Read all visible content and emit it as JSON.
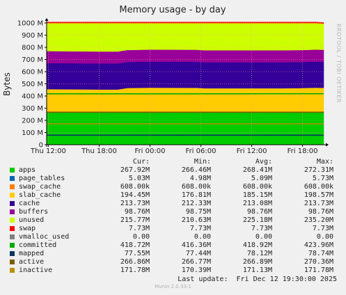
{
  "chart_data": {
    "type": "area",
    "title": "Memory usage - by day",
    "ylabel": "Bytes",
    "ylim": [
      0,
      1000000000
    ],
    "y_ticks": [
      "0",
      "100 M",
      "200 M",
      "300 M",
      "400 M",
      "500 M",
      "600 M",
      "700 M",
      "800 M",
      "900 M",
      "1000 M"
    ],
    "x_ticks": [
      "Thu 12:00",
      "Thu 18:00",
      "Fri 00:00",
      "Fri 06:00",
      "Fri 12:00",
      "Fri 18:00"
    ],
    "x_hours": [
      0,
      6,
      12,
      18,
      24,
      30
    ],
    "x_range_hours": [
      -0.2,
      32.5
    ],
    "grid": true,
    "watermark": "RRDTOOL / TOBI OETIKER",
    "stack_hours": [
      -0.2,
      6,
      8.2,
      9.3,
      12,
      17.5,
      18.5,
      24,
      26,
      27.5,
      30,
      31.5,
      32.5
    ],
    "stacked_series": [
      {
        "name": "apps",
        "color": "#00cc00",
        "values": [
          267.9,
          267.9,
          267.9,
          267.9,
          267.9,
          267.9,
          267.9,
          267.9,
          267.9,
          267.9,
          267.9,
          267.9,
          267.9
        ]
      },
      {
        "name": "page_tables",
        "color": "#0066b3",
        "values": [
          5.03,
          5.03,
          5.03,
          5.03,
          5.03,
          5.03,
          5.03,
          5.03,
          5.03,
          5.03,
          5.03,
          5.03,
          5.03
        ]
      },
      {
        "name": "swap_cache",
        "color": "#ff8000",
        "values": [
          0.608,
          0.608,
          0.608,
          0.608,
          0.608,
          0.608,
          0.608,
          0.608,
          0.608,
          0.608,
          0.608,
          0.608,
          0.608
        ]
      },
      {
        "name": "slab_cache",
        "color": "#ffcc00",
        "values": [
          183,
          180,
          180,
          192,
          195,
          194,
          190,
          190,
          190,
          190,
          192,
          195,
          194
        ]
      },
      {
        "name": "cache",
        "color": "#330099",
        "values": [
          213.7,
          213.7,
          213.7,
          213.7,
          213.7,
          213.7,
          213.7,
          213.7,
          213.7,
          213.7,
          213.7,
          213.7,
          213.7
        ]
      },
      {
        "name": "buffers",
        "color": "#990099",
        "values": [
          98.76,
          98.76,
          98.76,
          98.76,
          98.76,
          98.76,
          98.76,
          98.76,
          98.76,
          98.76,
          98.76,
          98.76,
          98.76
        ]
      },
      {
        "name": "unused",
        "color": "#ccff00",
        "values": [
          230.6,
          233.6,
          233.6,
          221.6,
          218.6,
          219.6,
          223.6,
          223.6,
          223.6,
          223.6,
          221.6,
          218.6,
          215.77
        ]
      },
      {
        "name": "swap",
        "color": "#ff0000",
        "values": [
          7.73,
          7.73,
          7.73,
          7.73,
          7.73,
          7.73,
          7.73,
          7.73,
          7.73,
          7.73,
          7.73,
          7.73,
          7.73
        ]
      }
    ],
    "line_series": [
      {
        "name": "committed",
        "color": "#00aa00",
        "values": [
          418.5,
          418.5,
          418.5,
          418.5,
          418.5,
          418.5,
          418.5,
          418.5,
          418.7,
          418.7,
          418.7,
          418.7,
          418.7
        ]
      },
      {
        "name": "mapped",
        "color": "#0a3560",
        "values": [
          78,
          78,
          78,
          78,
          78,
          78,
          78,
          78,
          78,
          78,
          78,
          78,
          77.55
        ]
      },
      {
        "name": "active",
        "color": "#7a5c00",
        "values": [
          267,
          267,
          267,
          267,
          267,
          267,
          267,
          267,
          267,
          267,
          267,
          267,
          266.86
        ]
      },
      {
        "name": "inactive",
        "color": "#b89200",
        "values": [
          171.2,
          171.2,
          171.2,
          171.2,
          171.2,
          171.2,
          171.2,
          171.2,
          171.2,
          171.2,
          171.2,
          171.2,
          171.78
        ]
      }
    ]
  },
  "legend": {
    "headers": [
      "Cur:",
      "Min:",
      "Avg:",
      "Max:"
    ],
    "rows": [
      {
        "name": "apps",
        "color": "#00cc00",
        "cur": "267.92M",
        "min": "266.46M",
        "avg": "268.41M",
        "max": "272.31M"
      },
      {
        "name": "page_tables",
        "color": "#0066b3",
        "cur": "5.03M",
        "min": "4.98M",
        "avg": "5.09M",
        "max": "5.73M"
      },
      {
        "name": "swap_cache",
        "color": "#ff8000",
        "cur": "608.00k",
        "min": "608.00k",
        "avg": "608.00k",
        "max": "608.00k"
      },
      {
        "name": "slab_cache",
        "color": "#ffcc00",
        "cur": "194.45M",
        "min": "176.81M",
        "avg": "185.15M",
        "max": "198.57M"
      },
      {
        "name": "cache",
        "color": "#330099",
        "cur": "213.73M",
        "min": "212.33M",
        "avg": "213.08M",
        "max": "213.73M"
      },
      {
        "name": "buffers",
        "color": "#990099",
        "cur": "98.76M",
        "min": "98.75M",
        "avg": "98.76M",
        "max": "98.76M"
      },
      {
        "name": "unused",
        "color": "#ccff00",
        "cur": "215.77M",
        "min": "210.63M",
        "avg": "225.18M",
        "max": "235.20M"
      },
      {
        "name": "swap",
        "color": "#ff0000",
        "cur": "7.73M",
        "min": "7.73M",
        "avg": "7.73M",
        "max": "7.73M"
      },
      {
        "name": "vmalloc_used",
        "color": "#808080",
        "cur": "0.00",
        "min": "0.00",
        "avg": "0.00",
        "max": "0.00"
      },
      {
        "name": "committed",
        "color": "#00aa00",
        "cur": "418.72M",
        "min": "416.36M",
        "avg": "418.92M",
        "max": "423.96M"
      },
      {
        "name": "mapped",
        "color": "#0a3560",
        "cur": "77.55M",
        "min": "77.44M",
        "avg": "78.12M",
        "max": "78.74M"
      },
      {
        "name": "active",
        "color": "#7a5c00",
        "cur": "266.86M",
        "min": "266.77M",
        "avg": "266.89M",
        "max": "270.36M"
      },
      {
        "name": "inactive",
        "color": "#b89200",
        "cur": "171.78M",
        "min": "170.39M",
        "avg": "171.13M",
        "max": "171.78M"
      }
    ]
  },
  "last_update": "Last update:  Fri Dec 12 19:30:00 2025",
  "footer": "Munin 2.0.33-1"
}
